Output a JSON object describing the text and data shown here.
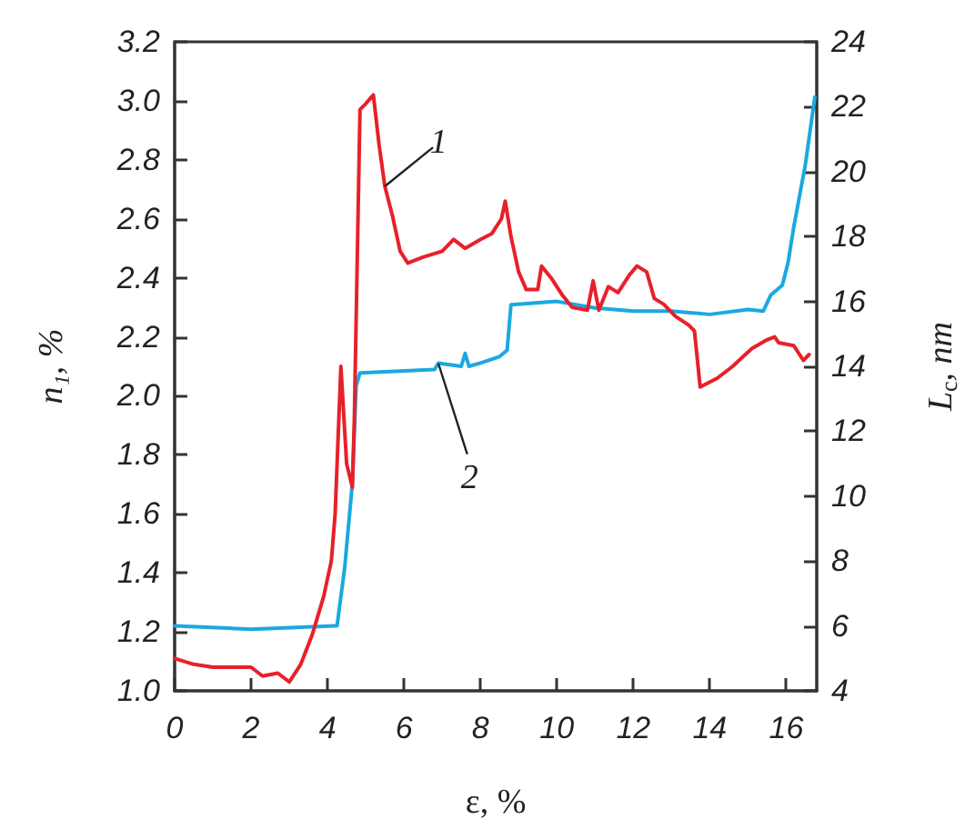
{
  "chart_data": {
    "type": "line",
    "xlabel": "ε, %",
    "ylabel": "n₁, %",
    "y2label": "L$_{c}$, nm",
    "xlim": [
      0,
      16.8
    ],
    "xticks": [
      0,
      2,
      4,
      6,
      8,
      10,
      12,
      14,
      16
    ],
    "ylim": [
      1.0,
      3.2
    ],
    "yticks": [
      {
        "value": 1.0,
        "label": "1.0"
      },
      {
        "value": 1.2,
        "label": "1.2"
      },
      {
        "value": 1.4,
        "label": "1.4"
      },
      {
        "value": 1.6,
        "label": "1.6"
      },
      {
        "value": 1.8,
        "label": "1.8"
      },
      {
        "value": 2.0,
        "label": "2.0"
      },
      {
        "value": 2.2,
        "label": "2.2"
      },
      {
        "value": 2.4,
        "label": "2.4"
      },
      {
        "value": 2.6,
        "label": "2.6"
      },
      {
        "value": 2.8,
        "label": "2.8"
      },
      {
        "value": 3.0,
        "label": "3.0"
      },
      {
        "value": 3.2,
        "label": "3.2"
      }
    ],
    "y2lim": [
      4,
      24
    ],
    "y2ticks": [
      4,
      6,
      8,
      10,
      12,
      14,
      16,
      18,
      20,
      22,
      24
    ],
    "grid": false,
    "marker": "none",
    "line_style": "solid",
    "annotations": [
      {
        "text": "1",
        "x": 5.5,
        "y": 2.71
      },
      {
        "text": "2",
        "x": 6.9,
        "y": 2.11
      }
    ],
    "series": [
      {
        "color": "#e8202a",
        "x": [
          0,
          0.5,
          1,
          2,
          2.3,
          2.7,
          3.0,
          3.3,
          3.6,
          3.9,
          4.1,
          4.2,
          4.35,
          4.5,
          4.65,
          4.7,
          4.85,
          5.0,
          5.2,
          5.35,
          5.5,
          5.7,
          5.9,
          6.1,
          6.5,
          7.0,
          7.3,
          7.6,
          8.0,
          8.3,
          8.55,
          8.65,
          8.8,
          9.0,
          9.2,
          9.5,
          9.6,
          9.85,
          10.15,
          10.4,
          10.8,
          10.95,
          11.1,
          11.35,
          11.6,
          11.9,
          12.1,
          12.35,
          12.55,
          12.8,
          13.1,
          13.45,
          13.6,
          13.75,
          14.2,
          14.6,
          15.1,
          15.5,
          15.7,
          15.8,
          16.2,
          16.45,
          16.6
        ],
        "values": [
          1.11,
          1.09,
          1.08,
          1.08,
          1.05,
          1.06,
          1.03,
          1.09,
          1.19,
          1.32,
          1.44,
          1.6,
          2.1,
          1.77,
          1.69,
          1.91,
          2.97,
          2.99,
          3.02,
          2.85,
          2.71,
          2.61,
          2.49,
          2.45,
          2.47,
          2.49,
          2.53,
          2.5,
          2.53,
          2.55,
          2.6,
          2.66,
          2.54,
          2.42,
          2.36,
          2.36,
          2.44,
          2.4,
          2.34,
          2.3,
          2.29,
          2.39,
          2.29,
          2.37,
          2.35,
          2.41,
          2.44,
          2.42,
          2.33,
          2.31,
          2.27,
          2.24,
          2.22,
          2.03,
          2.06,
          2.1,
          2.16,
          2.19,
          2.2,
          2.18,
          2.17,
          2.12,
          2.14
        ]
      },
      {
        "color": "#1ba8e0",
        "axis": "y2",
        "x": [
          0,
          2,
          4.2,
          4.25,
          4.45,
          4.65,
          4.75,
          4.85,
          6.8,
          6.9,
          7.5,
          7.6,
          7.7,
          8.0,
          8.5,
          8.7,
          8.8,
          10,
          11,
          12,
          13,
          14,
          15,
          15.4,
          15.6,
          15.9,
          16.05,
          16.2,
          16.5,
          16.75
        ],
        "values": [
          6.0,
          5.9,
          6.0,
          6.0,
          7.8,
          10.4,
          13.4,
          13.8,
          13.9,
          14.1,
          14.0,
          14.4,
          14.0,
          14.1,
          14.3,
          14.5,
          15.9,
          16.0,
          15.8,
          15.7,
          15.7,
          15.6,
          15.75,
          15.7,
          16.2,
          16.5,
          17.2,
          18.3,
          20.2,
          22.3
        ]
      }
    ]
  }
}
